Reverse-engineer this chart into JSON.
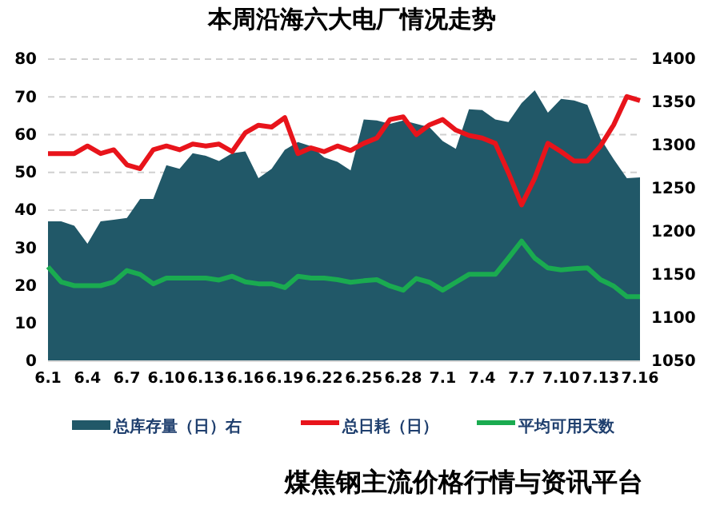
{
  "chart_data": {
    "type": "line",
    "title": "本周沿海六大电厂情况走势",
    "categories": [
      "6.1",
      null,
      null,
      "6.4",
      null,
      null,
      "6.7",
      null,
      null,
      "6.10",
      null,
      null,
      "6.13",
      null,
      null,
      "6.16",
      null,
      null,
      "6.19",
      null,
      null,
      "6.22",
      null,
      null,
      "6.25",
      null,
      null,
      "6.28",
      null,
      null,
      "7.1",
      null,
      null,
      "7.4",
      null,
      null,
      "7.7",
      null,
      null,
      "7.10",
      null,
      null,
      "7.13",
      null,
      null,
      "7.16"
    ],
    "series": [
      {
        "name": "总库存量（日）右",
        "type": "area",
        "axis": "y2",
        "color": "#215868",
        "values": [
          1212,
          1212,
          1207,
          1186,
          1212,
          1214,
          1216,
          1238,
          1238,
          1277,
          1273,
          1291,
          1288,
          1282,
          1291,
          1293,
          1262,
          1273,
          1295,
          1304,
          1299,
          1286,
          1281,
          1271,
          1330,
          1329,
          1325,
          1329,
          1325,
          1321,
          1305,
          1296,
          1342,
          1341,
          1330,
          1327,
          1349,
          1364,
          1338,
          1354,
          1352,
          1347,
          1308,
          1284,
          1262,
          1263
        ]
      },
      {
        "name": "总日耗（日）",
        "type": "line",
        "color": "#e8141b",
        "values": [
          55,
          55,
          55,
          57,
          55,
          56,
          52,
          51,
          56,
          57,
          56,
          57.5,
          57,
          57.5,
          55.5,
          60.5,
          62.5,
          62,
          64.5,
          55,
          56.5,
          55.5,
          57,
          55.8,
          57.7,
          59.1,
          64,
          64.7,
          60,
          62.6,
          64,
          61.2,
          59.8,
          59.1,
          57.7,
          49.9,
          41.4,
          48.5,
          57.7,
          55.5,
          53,
          53,
          57,
          62.6,
          70.1,
          69
        ]
      },
      {
        "name": "平均可用天数",
        "type": "line",
        "color": "#1aab50",
        "values": [
          25,
          21,
          20,
          20,
          20,
          21,
          24,
          23,
          20.5,
          22,
          22,
          22,
          22,
          21.5,
          22.5,
          21,
          20.5,
          20.5,
          19.5,
          22.5,
          22,
          22,
          21.6,
          20.9,
          21.3,
          21.6,
          19.9,
          18.8,
          21.9,
          20.9,
          18.8,
          20.9,
          23,
          23,
          23,
          27.3,
          31.8,
          27.3,
          24.7,
          24.2,
          24.5,
          24.7,
          21.6,
          19.9,
          17.1,
          17.1
        ]
      }
    ],
    "ylim": [
      0,
      80
    ],
    "yticks": [
      0,
      10,
      20,
      30,
      40,
      50,
      60,
      70,
      80
    ],
    "y2lim": [
      1050,
      1400
    ],
    "y2ticks": [
      1050,
      1100,
      1150,
      1200,
      1250,
      1300,
      1350,
      1400
    ],
    "grid": "y",
    "legend": "bottom",
    "marker": "none",
    "line_style": "solid",
    "annotations": [
      "煤焦钢主流价格行情与资讯平台"
    ]
  }
}
